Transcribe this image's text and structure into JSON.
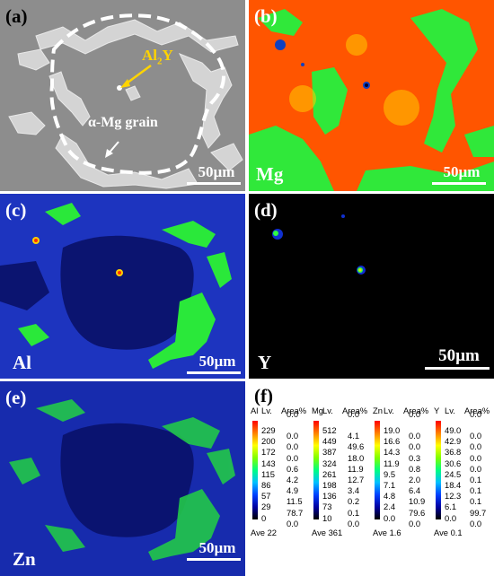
{
  "panels": {
    "a": {
      "label": "(a)",
      "annotation_al2y_prefix": "Al",
      "annotation_al2y_sub": "2",
      "annotation_al2y_suffix": "Y",
      "annotation_grain": "α-Mg grain",
      "scale": "50µm"
    },
    "b": {
      "label": "(b)",
      "element": "Mg",
      "scale": "50µm"
    },
    "c": {
      "label": "(c)",
      "element": "Al",
      "scale": "50µm"
    },
    "d": {
      "label": "(d)",
      "element": "Y",
      "scale": "50µm"
    },
    "e": {
      "label": "(e)",
      "element": "Zn",
      "scale": "50µm"
    },
    "f": {
      "label": "(f)"
    }
  },
  "legend_header": {
    "lv": "Lv.",
    "area": "Area%"
  },
  "legends": [
    {
      "element": "Al",
      "levels": [
        "229",
        "200",
        "172",
        "143",
        "115",
        "86",
        "57",
        "29",
        "0"
      ],
      "areas": [
        "0.0",
        "0.0",
        "0.0",
        "0.0",
        "0.6",
        "4.2",
        "4.9",
        "11.5",
        "78.7",
        "0.0"
      ],
      "ave": "Ave 22"
    },
    {
      "element": "Mg",
      "levels": [
        "512",
        "449",
        "387",
        "324",
        "261",
        "198",
        "136",
        "73",
        "10"
      ],
      "areas": [
        "0.0",
        "4.1",
        "49.6",
        "18.0",
        "11.9",
        "12.7",
        "3.4",
        "0.2",
        "0.1",
        "0.0"
      ],
      "ave": "Ave 361"
    },
    {
      "element": "Zn",
      "levels": [
        "19.0",
        "16.6",
        "14.3",
        "11.9",
        "9.5",
        "7.1",
        "4.8",
        "2.4",
        "0.0"
      ],
      "areas": [
        "0.0",
        "0.0",
        "0.0",
        "0.3",
        "0.8",
        "2.0",
        "6.4",
        "10.9",
        "79.6",
        "0.0"
      ],
      "ave": "Ave 1.6"
    },
    {
      "element": "Y",
      "levels": [
        "49.0",
        "42.9",
        "36.8",
        "30.6",
        "24.5",
        "18.4",
        "12.3",
        "6.1",
        "0.0"
      ],
      "areas": [
        "0.0",
        "0.0",
        "0.0",
        "0.0",
        "0.0",
        "0.1",
        "0.1",
        "0.1",
        "99.7",
        "0.0"
      ],
      "ave": "Ave 0.1"
    }
  ],
  "colors": {
    "sem_bg": "#8e8e8e",
    "sem_phase": "#d6d6d6",
    "map_bg_mg": "#ff5a00",
    "map_low": "#050a6e",
    "map_green": "#2aff35",
    "map_black": "#000000"
  }
}
